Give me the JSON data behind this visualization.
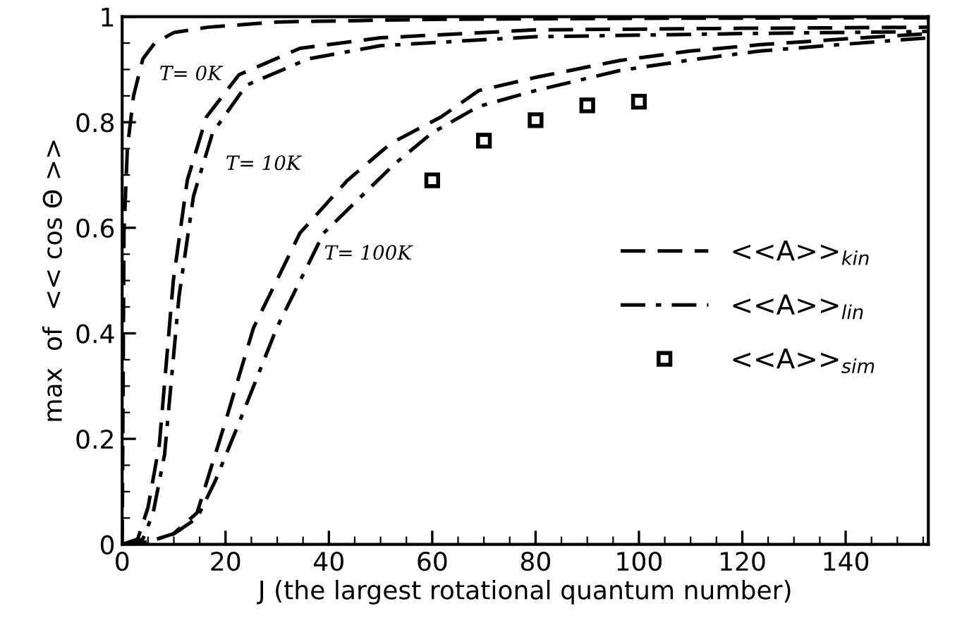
{
  "chart_data": {
    "type": "line",
    "xlabel": "J (the largest rotational quantum number)",
    "ylabel": "max  of  << cos Θ >>",
    "xlim": [
      0,
      156
    ],
    "ylim": [
      0,
      1
    ],
    "xticks": [
      0,
      20,
      40,
      60,
      80,
      100,
      120,
      140
    ],
    "yticks": [
      0,
      0.2,
      0.4,
      0.6,
      0.8,
      1
    ],
    "grid": false,
    "legend": "right",
    "series": [
      {
        "color": "#000000",
        "line_style": "dashed",
        "x": [
          0,
          0.35,
          1,
          2.2,
          4,
          6.3,
          10,
          16.5,
          30,
          60,
          100,
          156
        ],
        "values": [
          0,
          0.59,
          0.75,
          0.85,
          0.92,
          0.95,
          0.97,
          0.98,
          0.99,
          0.995,
          0.997,
          0.998
        ]
      },
      {
        "name": "<<A>>$_{kin}$",
        "color": "#000000",
        "line_style": "dashed",
        "x": [
          0,
          3,
          5,
          7.2,
          9.9,
          12.6,
          16.3,
          22.6,
          34.4,
          50,
          80,
          120,
          156
        ],
        "values": [
          0,
          0.01,
          0.07,
          0.19,
          0.5,
          0.69,
          0.81,
          0.89,
          0.94,
          0.96,
          0.975,
          0.978,
          0.98
        ]
      },
      {
        "name": "<<A>>$_{lin}$",
        "color": "#000000",
        "line_style": "dashdot",
        "x": [
          0,
          4,
          6,
          8.2,
          11,
          13.8,
          17.5,
          24,
          36,
          50,
          80,
          120,
          156
        ],
        "values": [
          0,
          0.01,
          0.06,
          0.17,
          0.47,
          0.66,
          0.78,
          0.87,
          0.92,
          0.945,
          0.962,
          0.968,
          0.972
        ]
      },
      {
        "color": "#000000",
        "line_style": "dashed",
        "x": [
          0,
          5,
          9.9,
          14.5,
          19.9,
          25.4,
          34.4,
          43.6,
          52,
          61.7,
          69,
          80,
          96.3,
          110,
          123.5,
          140,
          156
        ],
        "values": [
          0,
          0.005,
          0.02,
          0.06,
          0.23,
          0.41,
          0.59,
          0.69,
          0.76,
          0.81,
          0.86,
          0.885,
          0.917,
          0.935,
          0.947,
          0.958,
          0.968
        ]
      },
      {
        "color": "#000000",
        "line_style": "dashdot",
        "x": [
          0,
          5,
          10,
          14.5,
          18,
          22.6,
          29.9,
          39,
          52.6,
          60,
          69,
          80,
          96.3,
          110,
          123.5,
          140,
          156
        ],
        "values": [
          0,
          0.005,
          0.02,
          0.05,
          0.12,
          0.23,
          0.41,
          0.59,
          0.72,
          0.78,
          0.83,
          0.86,
          0.898,
          0.918,
          0.935,
          0.948,
          0.96
        ]
      },
      {
        "name": "<<A>>$_{sim}$",
        "type": "scatter",
        "marker": "square",
        "color": "#000000",
        "x": [
          60,
          70,
          80,
          90,
          100
        ],
        "values": [
          0.69,
          0.765,
          0.804,
          0.832,
          0.839
        ]
      }
    ],
    "annotations": [
      "T= 0K",
      "T= 10K",
      "T= 100K"
    ]
  }
}
